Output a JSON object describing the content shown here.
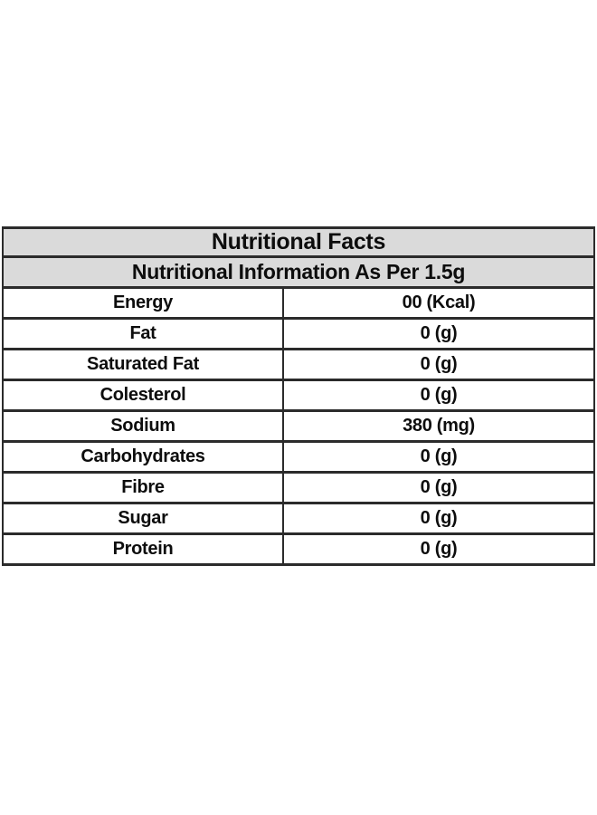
{
  "table": {
    "title": "Nutritional Facts",
    "subtitle": "Nutritional Information As Per 1.5g",
    "rows": [
      {
        "label": "Energy",
        "value": "00 (Kcal)"
      },
      {
        "label": "Fat",
        "value": "0 (g)"
      },
      {
        "label": "Saturated Fat",
        "value": "0 (g)"
      },
      {
        "label": "Colesterol",
        "value": "0 (g)"
      },
      {
        "label": "Sodium",
        "value": "380 (mg)"
      },
      {
        "label": "Carbohydrates",
        "value": "0 (g)"
      },
      {
        "label": "Fibre",
        "value": "0 (g)"
      },
      {
        "label": "Sugar",
        "value": "0 (g)"
      },
      {
        "label": "Protein",
        "value": "0 (g)"
      }
    ],
    "colors": {
      "header_background": "#dadada",
      "border": "#2b2b2b",
      "row_background": "#ffffff",
      "text": "#0d0d0d",
      "page_background": "#ffffff"
    }
  }
}
